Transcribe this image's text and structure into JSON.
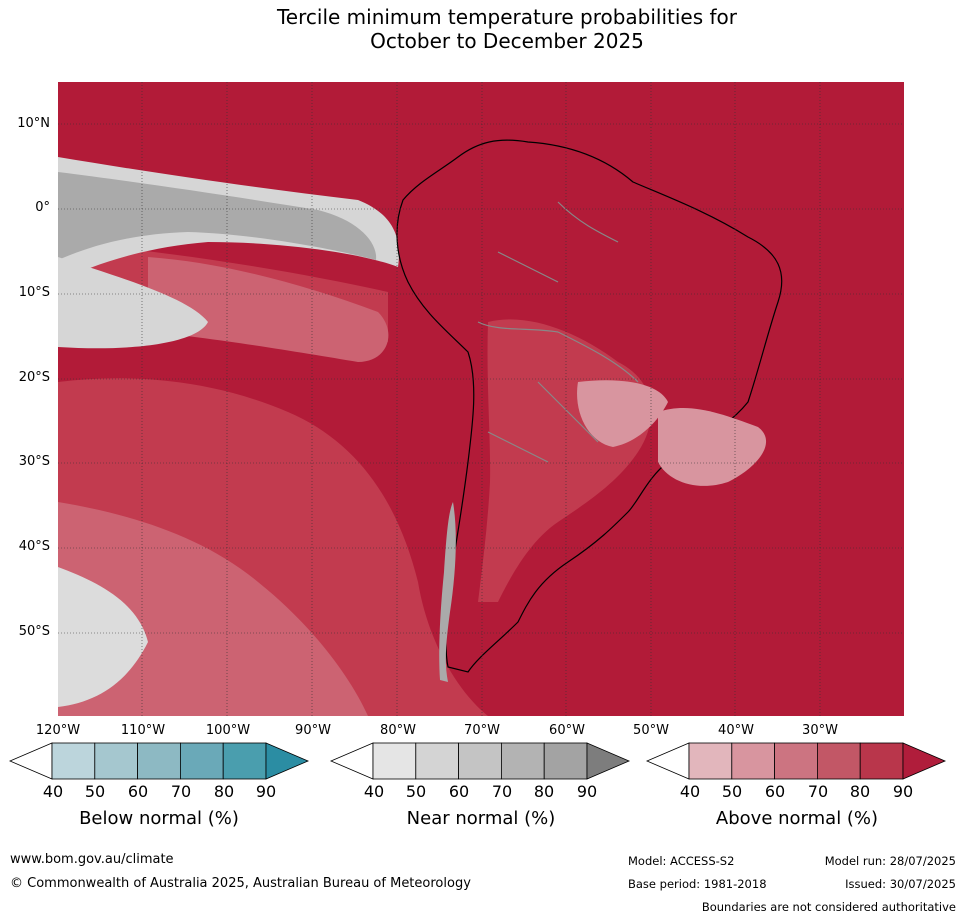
{
  "title": {
    "line1": "Tercile minimum temperature probabilities for",
    "line2": "October to December 2025"
  },
  "map": {
    "region": "South America",
    "lat_labels": [
      "10°N",
      "0°",
      "10°S",
      "20°S",
      "30°S",
      "40°S",
      "50°S"
    ],
    "lon_labels": [
      "120°W",
      "110°W",
      "100°W",
      "90°W",
      "80°W",
      "70°W",
      "60°W",
      "50°W",
      "40°W",
      "30°W"
    ],
    "colors": {
      "above_90": "#b21b38",
      "above_80": "#c23b4f",
      "above_70": "#cc6372",
      "near_50": "#d6d6d6",
      "near_70": "#aaaaaa",
      "coast": "#000000",
      "borders": "#888888",
      "gridlines": "#333333"
    }
  },
  "legends": [
    {
      "title": "Below normal (%)",
      "ticks": [
        "40",
        "50",
        "60",
        "70",
        "80",
        "90"
      ],
      "colors": [
        "#ffffff",
        "#bcd5dc",
        "#a5c7cf",
        "#8db9c3",
        "#6aa9b8",
        "#4a9eae",
        "#2b8da3"
      ]
    },
    {
      "title": "Near normal (%)",
      "ticks": [
        "40",
        "50",
        "60",
        "70",
        "80",
        "90"
      ],
      "colors": [
        "#ffffff",
        "#e5e5e5",
        "#d4d4d4",
        "#c4c4c4",
        "#b3b3b3",
        "#a3a3a3",
        "#7d7d7d"
      ]
    },
    {
      "title": "Above normal (%)",
      "ticks": [
        "40",
        "50",
        "60",
        "70",
        "80",
        "90"
      ],
      "colors": [
        "#ffffff",
        "#e2b6bc",
        "#d8959f",
        "#cc7481",
        "#c25766",
        "#b9364b",
        "#b01d3b"
      ]
    }
  ],
  "footer": {
    "website": "www.bom.gov.au/climate",
    "copyright": "© Commonwealth of Australia 2025, Australian Bureau of Meteorology",
    "model": "Model: ACCESS-S2",
    "base_period": "Base period: 1981-2018",
    "model_run": "Model run: 28/07/2025",
    "issued": "Issued: 30/07/2025",
    "disclaimer": "Boundaries are not considered authoritative"
  }
}
